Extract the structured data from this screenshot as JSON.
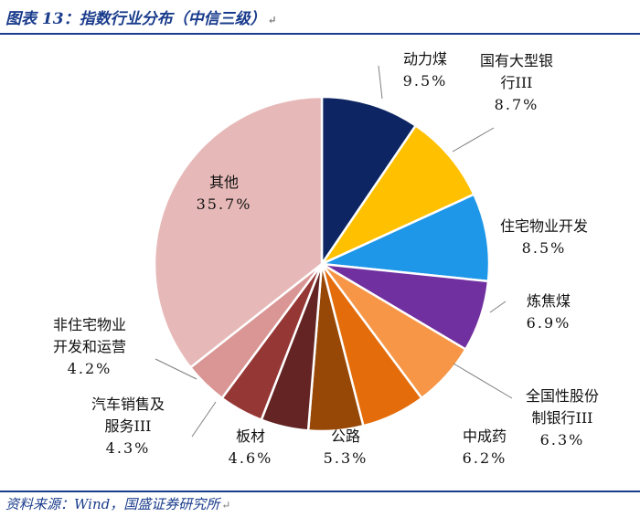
{
  "header": {
    "title": "图表 13：指数行业分布（中信三级）"
  },
  "footer": {
    "source": "资料来源：Wind，国盛证券研究所"
  },
  "chart_data": {
    "type": "pie",
    "title": "图表 13：指数行业分布（中信三级）",
    "slices": [
      {
        "name": "动力煤",
        "name_lines": [
          "动力煤"
        ],
        "pct_label": "9.5%",
        "value": 9.5,
        "color": "#0d2562"
      },
      {
        "name": "国有大型银行III",
        "name_lines": [
          "国有大型银",
          "行III"
        ],
        "pct_label": "8.7%",
        "value": 8.7,
        "color": "#ffc000"
      },
      {
        "name": "住宅物业开发",
        "name_lines": [
          "住宅物业开发"
        ],
        "pct_label": "8.5%",
        "value": 8.5,
        "color": "#1f97e8"
      },
      {
        "name": "炼焦煤",
        "name_lines": [
          "炼焦煤"
        ],
        "pct_label": "6.9%",
        "value": 6.9,
        "color": "#7030a0"
      },
      {
        "name": "全国性股份制银行III",
        "name_lines": [
          "全国性股份",
          "制银行III"
        ],
        "pct_label": "6.3%",
        "value": 6.3,
        "color": "#f79646"
      },
      {
        "name": "中成药",
        "name_lines": [
          "中成药"
        ],
        "pct_label": "6.2%",
        "value": 6.2,
        "color": "#e46c0a"
      },
      {
        "name": "公路",
        "name_lines": [
          "公路"
        ],
        "pct_label": "5.3%",
        "value": 5.3,
        "color": "#984806"
      },
      {
        "name": "板材",
        "name_lines": [
          "板材"
        ],
        "pct_label": "4.6%",
        "value": 4.6,
        "color": "#632423"
      },
      {
        "name": "汽车销售及服务III",
        "name_lines": [
          "汽车销售及",
          "服务III"
        ],
        "pct_label": "4.3%",
        "value": 4.3,
        "color": "#953735"
      },
      {
        "name": "非住宅物业开发和运营",
        "name_lines": [
          "非住宅物业",
          "开发和运营"
        ],
        "pct_label": "4.2%",
        "value": 4.2,
        "color": "#d99694"
      },
      {
        "name": "其他",
        "name_lines": [
          "其他"
        ],
        "pct_label": "35.7%",
        "value": 35.7,
        "color": "#e6b9b8"
      }
    ],
    "start_angle": "12 o'clock",
    "direction": "clockwise",
    "legend": "none"
  }
}
